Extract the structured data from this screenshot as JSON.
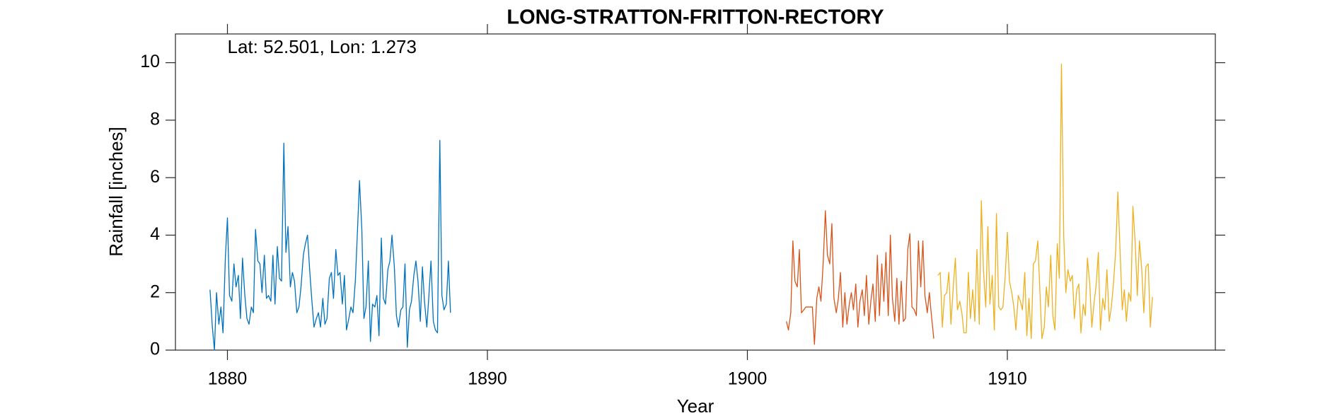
{
  "chart_data": {
    "type": "line",
    "title": "LONG-STRATTON-FRITTON-RECTORY",
    "annotation": "Lat: 52.501, Lon: 1.273",
    "x_label": "Year",
    "y_label": "Rainfall [inches]",
    "xlim": [
      1878,
      1918
    ],
    "xticks": [
      1880,
      1890,
      1900,
      1910
    ],
    "ylim": [
      0,
      11
    ],
    "yticks": [
      0,
      2,
      4,
      6,
      8,
      10
    ],
    "series": [
      {
        "color": "#0072BD",
        "x": [
          1879.33,
          1879.42,
          1879.5,
          1879.58,
          1879.67,
          1879.75,
          1879.83,
          1879.92,
          1880,
          1880.08,
          1880.17,
          1880.25,
          1880.33,
          1880.42,
          1880.5,
          1880.58,
          1880.67,
          1880.75,
          1880.83,
          1880.92,
          1881,
          1881.08,
          1881.17,
          1881.25,
          1881.33,
          1881.42,
          1881.5,
          1881.58,
          1881.67,
          1881.75,
          1881.83,
          1881.92,
          1882,
          1882.08,
          1882.17,
          1882.25,
          1882.33,
          1882.42,
          1882.5,
          1882.58,
          1882.67,
          1882.75,
          1882.83,
          1882.92,
          1883,
          1883.08,
          1883.17,
          1883.25,
          1883.33,
          1883.42,
          1883.5,
          1883.58,
          1883.67,
          1883.75,
          1883.83,
          1883.92,
          1884,
          1884.08,
          1884.17,
          1884.25,
          1884.33,
          1884.42,
          1884.5,
          1884.58,
          1884.67,
          1884.75,
          1884.83,
          1884.92,
          1885,
          1885.08,
          1885.17,
          1885.25,
          1885.33,
          1885.42,
          1885.5,
          1885.58,
          1885.67,
          1885.75,
          1885.83,
          1885.92,
          1886,
          1886.08,
          1886.17,
          1886.25,
          1886.33,
          1886.42,
          1886.5,
          1886.58,
          1886.67,
          1886.75,
          1886.83,
          1886.92,
          1887,
          1887.08,
          1887.17,
          1887.25,
          1887.33,
          1887.42,
          1887.5,
          1887.58,
          1887.67,
          1887.75,
          1887.83,
          1887.92,
          1888,
          1888.08,
          1888.17,
          1888.25,
          1888.33,
          1888.42,
          1888.5,
          1888.58
        ],
        "values": [
          2.1,
          0.8,
          0.0,
          2.0,
          0.9,
          1.5,
          0.6,
          3.2,
          4.6,
          1.9,
          1.7,
          3.0,
          2.2,
          2.6,
          1.1,
          3.2,
          1.9,
          1.1,
          0.9,
          1.5,
          1.3,
          4.2,
          3.1,
          3.0,
          2.0,
          3.3,
          1.8,
          1.9,
          1.7,
          3.3,
          1.6,
          3.6,
          2.5,
          2.4,
          7.2,
          3.4,
          4.3,
          2.2,
          2.7,
          2.4,
          1.3,
          1.5,
          2.2,
          3.3,
          3.7,
          4.0,
          2.7,
          1.7,
          0.8,
          1.1,
          1.3,
          0.8,
          1.8,
          0.9,
          1.1,
          2.5,
          2.7,
          1.8,
          3.5,
          2.6,
          2.7,
          1.6,
          2.6,
          0.7,
          1.1,
          1.5,
          1.3,
          2.4,
          4.1,
          5.9,
          4.2,
          1.1,
          1.5,
          3.1,
          0.3,
          1.6,
          1.5,
          1.9,
          0.5,
          3.9,
          1.8,
          1.6,
          2.8,
          3.1,
          4.0,
          2.9,
          1.2,
          0.8,
          1.4,
          1.5,
          3.0,
          0.1,
          1.4,
          1.7,
          2.6,
          3.1,
          2.4,
          1.0,
          2.9,
          1.7,
          0.8,
          1.9,
          3.1,
          1.0,
          0.7,
          0.6,
          7.3,
          1.9,
          1.4,
          1.6,
          3.1,
          1.3
        ]
      },
      {
        "color": "#D95319",
        "x": [
          1901.5,
          1901.58,
          1901.67,
          1901.75,
          1901.83,
          1901.92,
          1902,
          1902.08,
          1902.17,
          1902.25,
          1902.33,
          1902.42,
          1902.5,
          1902.58,
          1902.67,
          1902.75,
          1902.83,
          1902.92,
          1903,
          1903.08,
          1903.17,
          1903.25,
          1903.33,
          1903.42,
          1903.5,
          1903.58,
          1903.67,
          1903.75,
          1903.83,
          1903.92,
          1904,
          1904.08,
          1904.17,
          1904.25,
          1904.33,
          1904.42,
          1904.5,
          1904.58,
          1904.67,
          1904.75,
          1904.83,
          1904.92,
          1905,
          1905.08,
          1905.17,
          1905.25,
          1905.33,
          1905.42,
          1905.5,
          1905.58,
          1905.67,
          1905.75,
          1905.83,
          1905.92,
          1906,
          1906.08,
          1906.17,
          1906.25,
          1906.33,
          1906.42,
          1906.5,
          1906.58,
          1906.67,
          1906.75,
          1906.83,
          1906.92,
          1907,
          1907.08,
          1907.17
        ],
        "values": [
          1.0,
          0.7,
          1.3,
          3.8,
          2.4,
          2.2,
          3.5,
          1.3,
          1.4,
          1.5,
          1.5,
          1.5,
          1.5,
          0.2,
          1.8,
          2.2,
          1.7,
          3.1,
          4.85,
          3.3,
          3.0,
          4.4,
          1.8,
          1.3,
          1.8,
          2.7,
          0.8,
          2.0,
          0.9,
          1.6,
          2.0,
          1.4,
          2.3,
          0.8,
          1.7,
          2.1,
          1.2,
          2.6,
          0.9,
          1.7,
          2.3,
          1.0,
          3.3,
          1.2,
          3.0,
          1.7,
          3.4,
          1.2,
          4.0,
          1.8,
          1.0,
          2.5,
          0.9,
          2.4,
          1.0,
          1.1,
          3.5,
          4.05,
          1.5,
          1.4,
          1.2,
          3.8,
          2.2,
          3.8,
          1.9,
          1.3,
          2.0,
          1.2,
          0.4
        ]
      },
      {
        "color": "#EDB120",
        "x": [
          1907.33,
          1907.42,
          1907.5,
          1907.58,
          1907.67,
          1907.75,
          1907.83,
          1907.92,
          1908,
          1908.08,
          1908.17,
          1908.25,
          1908.33,
          1908.42,
          1908.5,
          1908.58,
          1908.67,
          1908.75,
          1908.83,
          1908.92,
          1909,
          1909.08,
          1909.17,
          1909.25,
          1909.33,
          1909.42,
          1909.5,
          1909.58,
          1909.67,
          1909.75,
          1909.83,
          1909.92,
          1910,
          1910.08,
          1910.17,
          1910.25,
          1910.33,
          1910.42,
          1910.5,
          1910.58,
          1910.67,
          1910.75,
          1910.83,
          1910.92,
          1911,
          1911.08,
          1911.17,
          1911.25,
          1911.33,
          1911.42,
          1911.5,
          1911.58,
          1911.67,
          1911.75,
          1911.83,
          1911.92,
          1912,
          1912.08,
          1912.17,
          1912.25,
          1912.33,
          1912.42,
          1912.5,
          1912.58,
          1912.67,
          1912.75,
          1912.83,
          1912.92,
          1913,
          1913.08,
          1913.17,
          1913.25,
          1913.33,
          1913.42,
          1913.5,
          1913.58,
          1913.67,
          1913.75,
          1913.83,
          1913.92,
          1914,
          1914.08,
          1914.17,
          1914.25,
          1914.33,
          1914.42,
          1914.5,
          1914.58,
          1914.67,
          1914.75,
          1914.83,
          1914.92,
          1915,
          1915.08,
          1915.17,
          1915.25,
          1915.33,
          1915.42,
          1915.5,
          1915.58
        ],
        "values": [
          2.6,
          2.7,
          0.8,
          1.9,
          2.0,
          2.7,
          0.9,
          2.2,
          3.2,
          1.4,
          1.7,
          1.3,
          0.6,
          0.6,
          2.7,
          1.1,
          2.1,
          1.0,
          3.5,
          0.9,
          5.2,
          2.8,
          1.5,
          4.3,
          1.6,
          2.6,
          0.7,
          4.75,
          1.5,
          1.4,
          1.5,
          2.6,
          4.1,
          2.4,
          2.0,
          1.5,
          0.7,
          1.9,
          1.7,
          1.4,
          2.7,
          0.5,
          1.8,
          0.4,
          3.0,
          3.1,
          3.8,
          2.1,
          0.4,
          0.8,
          2.2,
          1.5,
          3.3,
          1.2,
          0.7,
          3.7,
          2.5,
          9.95,
          3.9,
          2.0,
          2.8,
          2.4,
          2.6,
          1.1,
          2.1,
          2.3,
          0.6,
          1.6,
          1.2,
          3.2,
          2.3,
          0.8,
          1.6,
          2.3,
          3.4,
          0.7,
          1.8,
          1.4,
          2.8,
          1.0,
          1.5,
          2.3,
          3.5,
          5.5,
          3.6,
          1.4,
          2.1,
          1.0,
          2.0,
          1.7,
          5.0,
          3.7,
          1.9,
          3.8,
          2.8,
          1.3,
          2.9,
          3.0,
          0.8,
          1.85
        ]
      }
    ]
  }
}
